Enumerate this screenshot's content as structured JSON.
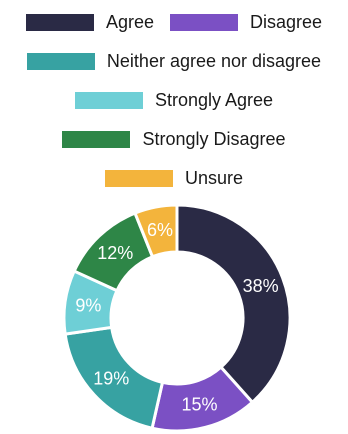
{
  "chart_data": {
    "type": "donut",
    "title": "",
    "legend_position": "top",
    "categories": [
      "Agree",
      "Disagree",
      "Neither agree nor disagree",
      "Strongly Agree",
      "Strongly Disagree",
      "Unsure"
    ],
    "values": [
      38,
      15,
      19,
      9,
      12,
      6
    ],
    "labels": [
      "38%",
      "15%",
      "19%",
      "9%",
      "12%",
      "6%"
    ],
    "colors": [
      "#2a2a45",
      "#7b50c4",
      "#37a2a2",
      "#6ecfd6",
      "#2e8647",
      "#f3b43c"
    ]
  }
}
